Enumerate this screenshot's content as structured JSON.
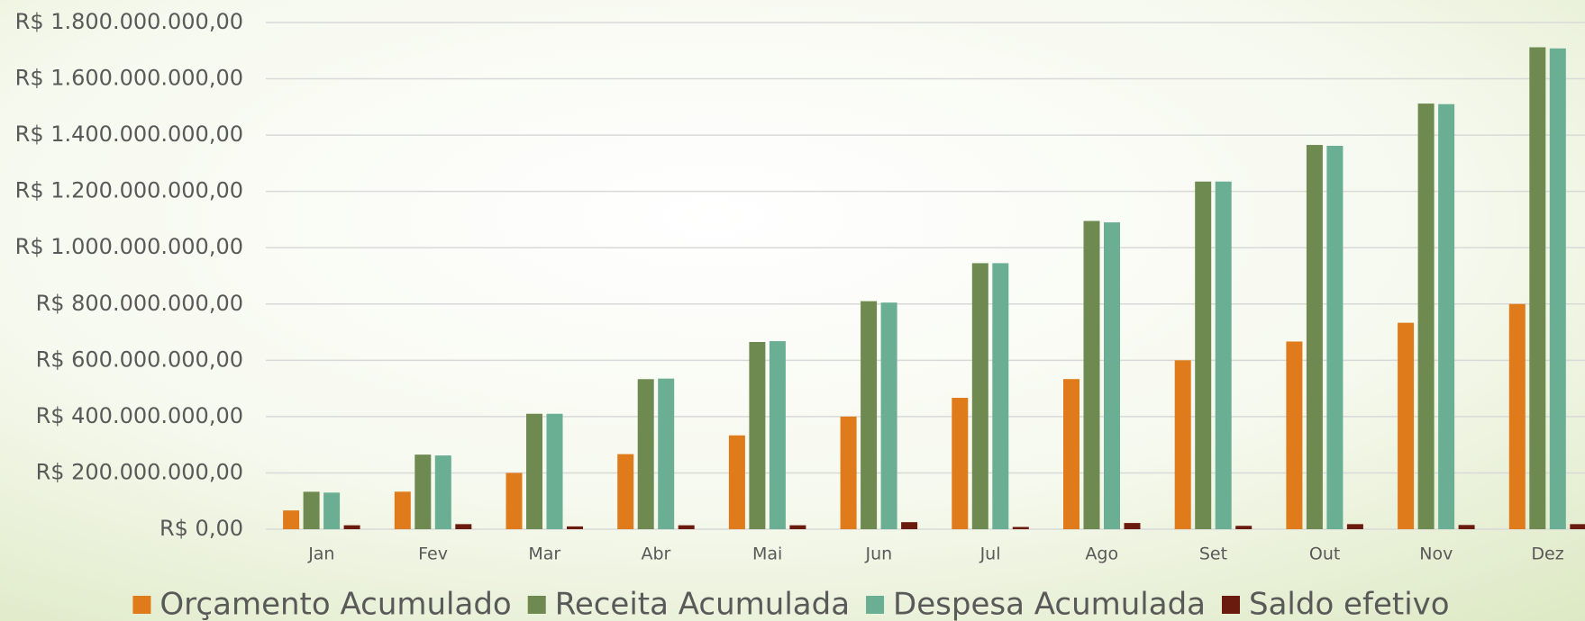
{
  "chart_data": {
    "type": "bar",
    "categories": [
      "Jan",
      "Fev",
      "Mar",
      "Abr",
      "Mai",
      "Jun",
      "Jul",
      "Ago",
      "Set",
      "Out",
      "Nov",
      "Dez"
    ],
    "series": [
      {
        "name": "Orçamento Acumulado",
        "color": "#e07b1b",
        "values": [
          66700000,
          133300000,
          200000000,
          266700000,
          333300000,
          400000000,
          466700000,
          533300000,
          600000000,
          666700000,
          733300000,
          800000000
        ]
      },
      {
        "name": "Receita Acumulada",
        "color": "#6e8a50",
        "values": [
          133000000,
          265000000,
          410000000,
          533000000,
          665000000,
          810000000,
          945000000,
          1095000000,
          1235000000,
          1365000000,
          1512000000,
          1712000000
        ]
      },
      {
        "name": "Despesa Acumulada",
        "color": "#6aae93",
        "values": [
          130000000,
          262000000,
          410000000,
          535000000,
          668000000,
          805000000,
          945000000,
          1090000000,
          1235000000,
          1362000000,
          1510000000,
          1708000000
        ]
      },
      {
        "name": "Saldo efetivo",
        "color": "#6b1a0e",
        "values": [
          14000000,
          18000000,
          10000000,
          14000000,
          14000000,
          25000000,
          8000000,
          22000000,
          12000000,
          18000000,
          15000000,
          18000000
        ]
      }
    ],
    "ylim": [
      0,
      1800000000
    ],
    "yticks": [
      {
        "value": 0,
        "label": "R$ 0,00"
      },
      {
        "value": 200000000,
        "label": "R$ 200.000.000,00"
      },
      {
        "value": 400000000,
        "label": "R$ 400.000.000,00"
      },
      {
        "value": 600000000,
        "label": "R$ 600.000.000,00"
      },
      {
        "value": 800000000,
        "label": "R$ 800.000.000,00"
      },
      {
        "value": 1000000000,
        "label": "R$ 1.000.000.000,00"
      },
      {
        "value": 1200000000,
        "label": "R$ 1.200.000.000,00"
      },
      {
        "value": 1400000000,
        "label": "R$ 1.400.000.000,00"
      },
      {
        "value": 1600000000,
        "label": "R$ 1.600.000.000,00"
      },
      {
        "value": 1800000000,
        "label": "R$ 1.800.000.000,00"
      }
    ],
    "grid": true,
    "legend": "bottom"
  }
}
